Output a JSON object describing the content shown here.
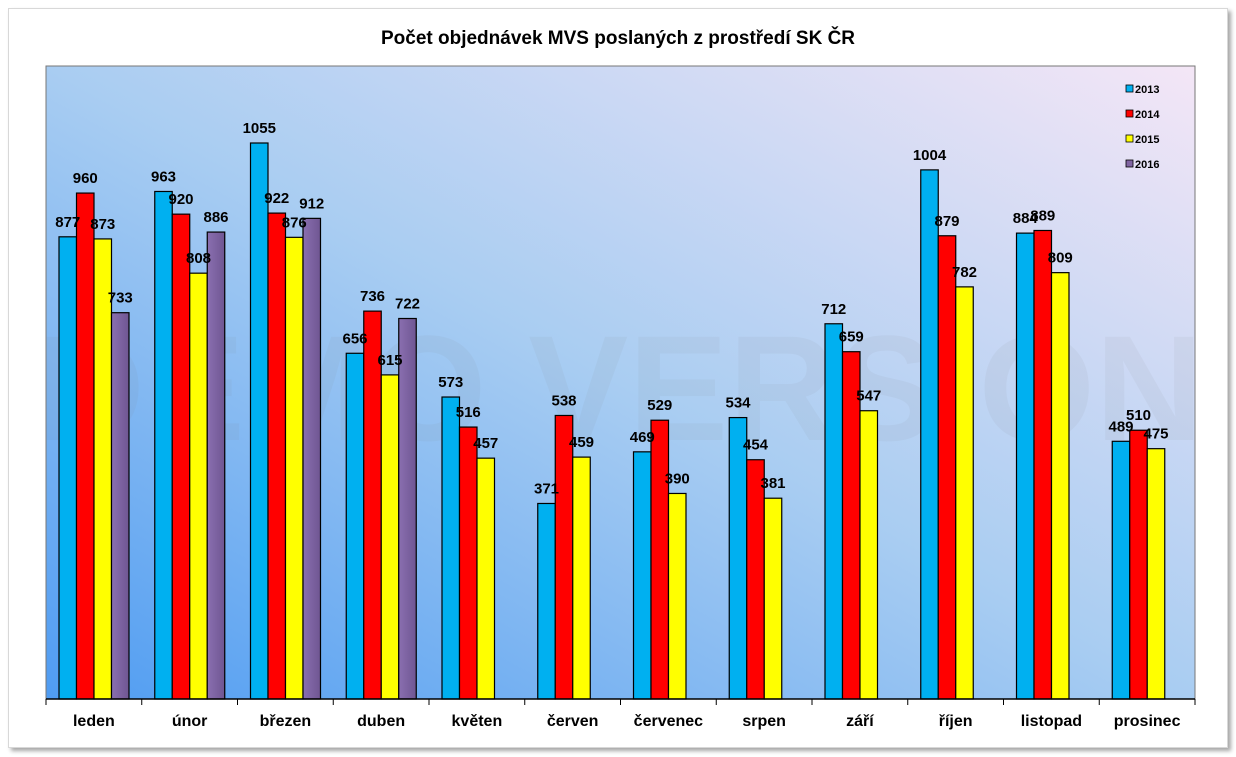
{
  "chart_data": {
    "type": "bar",
    "title": "Počet objednávek MVS poslaných z prostředí SK ČR",
    "xlabel": "",
    "ylabel": "",
    "ylim": [
      0,
      1260
    ],
    "grid": false,
    "legend_position": "top-right",
    "categories": [
      "leden",
      "únor",
      "březen",
      "duben",
      "květen",
      "červen",
      "červenec",
      "srpen",
      "září",
      "říjen",
      "listopad",
      "prosinec"
    ],
    "series": [
      {
        "name": "2013",
        "color": "#00b0f0",
        "values": [
          877,
          963,
          1055,
          656,
          573,
          371,
          469,
          534,
          712,
          1004,
          884,
          489
        ]
      },
      {
        "name": "2014",
        "color": "#ff0000",
        "values": [
          960,
          920,
          922,
          736,
          516,
          538,
          529,
          454,
          659,
          879,
          889,
          510
        ]
      },
      {
        "name": "2015",
        "color": "#ffff00",
        "values": [
          873,
          808,
          876,
          615,
          457,
          459,
          390,
          381,
          547,
          782,
          809,
          475
        ]
      },
      {
        "name": "2016",
        "color": "#8064a2",
        "values": [
          733,
          886,
          912,
          722,
          null,
          null,
          null,
          null,
          null,
          null,
          null,
          null
        ]
      }
    ],
    "watermark": "DEMO VERSION"
  }
}
